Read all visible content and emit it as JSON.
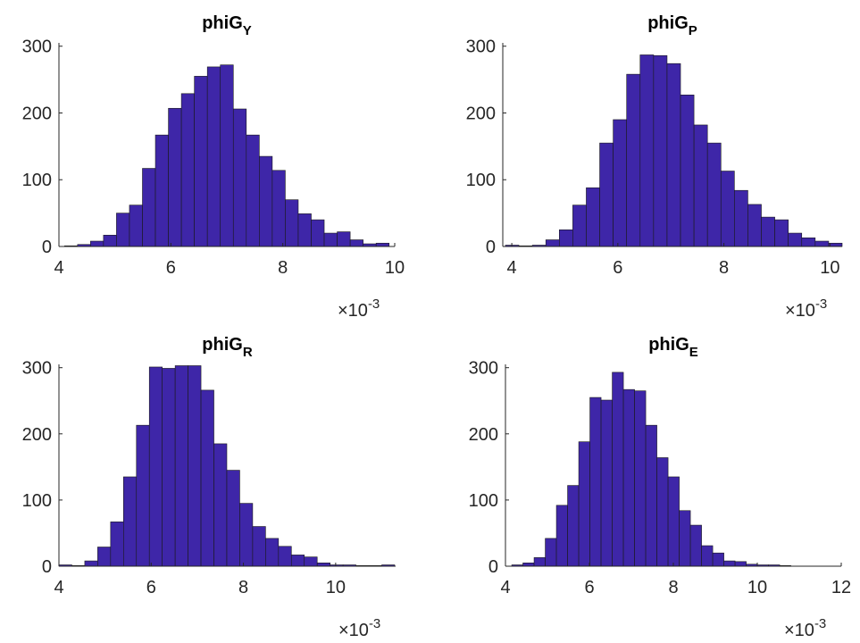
{
  "chart_data": [
    {
      "type": "histogram",
      "title": "phiG",
      "title_subscript": "Y",
      "color": "#3e26a8",
      "bins": [
        4.1,
        4.332,
        4.564,
        4.796,
        5.028,
        5.26,
        5.492,
        5.724,
        5.956,
        6.188,
        6.42,
        6.652,
        6.884,
        7.116,
        7.348,
        7.58,
        7.812,
        8.044,
        8.276,
        8.508,
        8.74,
        8.972,
        9.204,
        9.436,
        9.668,
        9.9
      ],
      "values": [
        1,
        3,
        8,
        17,
        50,
        62,
        117,
        167,
        207,
        229,
        255,
        269,
        272,
        206,
        167,
        135,
        114,
        70,
        49,
        40,
        20,
        22,
        10,
        4,
        5
      ],
      "xlim": [
        4,
        10
      ],
      "xticks": [
        4,
        6,
        8,
        10
      ],
      "ylim": [
        0,
        305
      ],
      "yticks": [
        0,
        100,
        200,
        300
      ],
      "x_multiplier": "×10",
      "x_exponent": "-3"
    },
    {
      "type": "histogram",
      "title": "phiG",
      "title_subscript": "P",
      "color": "#3e26a8",
      "bins": [
        3.88,
        4.134,
        4.388,
        4.642,
        4.896,
        5.15,
        5.404,
        5.658,
        5.912,
        6.166,
        6.42,
        6.674,
        6.928,
        7.182,
        7.436,
        7.69,
        7.944,
        8.198,
        8.452,
        8.706,
        8.96,
        9.214,
        9.468,
        9.722,
        9.976,
        10.23
      ],
      "values": [
        2,
        1,
        2,
        10,
        25,
        62,
        88,
        155,
        190,
        258,
        287,
        286,
        274,
        227,
        182,
        155,
        113,
        84,
        63,
        44,
        40,
        20,
        13,
        8,
        5
      ],
      "xlim": [
        3.83,
        10.23
      ],
      "xticks": [
        4,
        6,
        8,
        10
      ],
      "ylim": [
        0,
        305
      ],
      "yticks": [
        0,
        100,
        200,
        300
      ],
      "x_multiplier": "×10",
      "x_exponent": "-3"
    },
    {
      "type": "histogram",
      "title": "phiG",
      "title_subscript": "R",
      "color": "#3e26a8",
      "bins": [
        4,
        4.28,
        4.56,
        4.84,
        5.12,
        5.4,
        5.68,
        5.96,
        6.24,
        6.52,
        6.8,
        7.08,
        7.36,
        7.64,
        7.92,
        8.2,
        8.48,
        8.76,
        9.04,
        9.32,
        9.6,
        9.88,
        10.16,
        10.44,
        10.72,
        11,
        11.28
      ],
      "values": [
        2,
        1,
        8,
        29,
        67,
        135,
        213,
        301,
        299,
        303,
        303,
        266,
        185,
        145,
        95,
        60,
        42,
        30,
        17,
        14,
        5,
        2,
        2,
        1,
        1,
        2
      ],
      "xlim": [
        4,
        11.3
      ],
      "xticks": [
        4,
        6,
        8,
        10
      ],
      "ylim": [
        0,
        305
      ],
      "yticks": [
        0,
        100,
        200,
        300
      ],
      "x_multiplier": "×10",
      "x_exponent": "-3"
    },
    {
      "type": "histogram",
      "title": "phiG",
      "title_subscript": "E",
      "color": "#3e26a8",
      "bins": [
        4.15,
        4.416,
        4.682,
        4.948,
        5.214,
        5.48,
        5.746,
        6.012,
        6.278,
        6.544,
        6.81,
        7.076,
        7.342,
        7.608,
        7.874,
        8.14,
        8.406,
        8.672,
        8.938,
        9.204,
        9.47,
        9.736,
        10.002,
        10.268,
        10.534,
        10.8
      ],
      "values": [
        2,
        5,
        13,
        42,
        92,
        122,
        188,
        255,
        251,
        293,
        267,
        265,
        213,
        164,
        135,
        84,
        62,
        31,
        20,
        8,
        7,
        3,
        2,
        2,
        1
      ],
      "xlim": [
        4,
        12
      ],
      "xticks": [
        4,
        6,
        8,
        10,
        12
      ],
      "ylim": [
        0,
        305
      ],
      "yticks": [
        0,
        100,
        200,
        300
      ],
      "x_multiplier": "×10",
      "x_exponent": "-3"
    }
  ]
}
